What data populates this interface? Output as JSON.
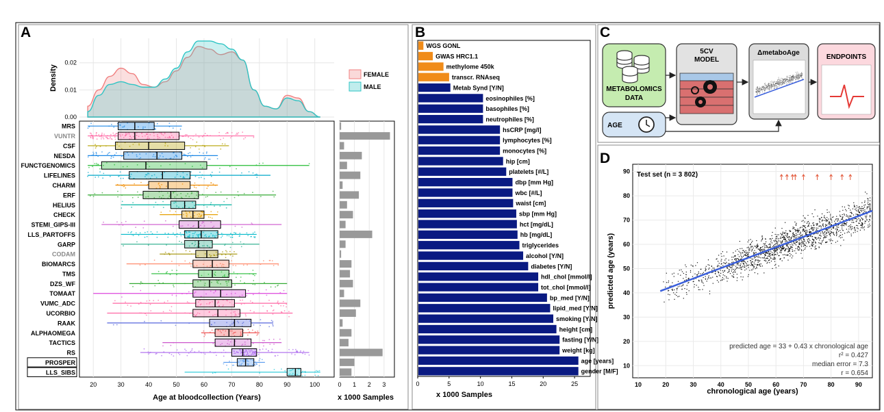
{
  "panel_labels": [
    "A",
    "B",
    "C",
    "D"
  ],
  "chart_data": [
    {
      "id": "density",
      "type": "area",
      "ylabel": "Density",
      "xlim": [
        15,
        107
      ],
      "ylim": [
        0,
        0.029
      ],
      "y_ticks": [
        0.0,
        0.01,
        0.02
      ],
      "y_tick_labels": [
        "0.00",
        "0.01",
        "0.02"
      ],
      "grid": true,
      "legend_position": "right",
      "series": [
        {
          "name": "FEMALE",
          "color": "#f08080",
          "x": [
            18,
            22,
            26,
            30,
            34,
            38,
            42,
            46,
            50,
            54,
            58,
            62,
            66,
            70,
            74,
            78,
            82,
            86,
            90,
            94,
            98,
            102
          ],
          "y": [
            0.004,
            0.01,
            0.015,
            0.018,
            0.016,
            0.012,
            0.011,
            0.013,
            0.017,
            0.022,
            0.026,
            0.025,
            0.023,
            0.024,
            0.021,
            0.01,
            0.004,
            0.003,
            0.008,
            0.007,
            0.002,
            0.0
          ]
        },
        {
          "name": "MALE",
          "color": "#2ec4c4",
          "x": [
            18,
            22,
            26,
            30,
            34,
            38,
            42,
            46,
            50,
            54,
            58,
            62,
            66,
            70,
            74,
            78,
            82,
            86,
            90,
            94,
            98,
            102
          ],
          "y": [
            0.002,
            0.008,
            0.012,
            0.013,
            0.012,
            0.011,
            0.011,
            0.014,
            0.018,
            0.024,
            0.028,
            0.028,
            0.027,
            0.025,
            0.021,
            0.01,
            0.004,
            0.003,
            0.007,
            0.006,
            0.002,
            0.0
          ]
        }
      ]
    },
    {
      "id": "boxplots",
      "type": "box",
      "xlabel": "Age at bloodcollection (Years)",
      "xlim": [
        15,
        107
      ],
      "x_ticks": [
        20,
        30,
        40,
        50,
        60,
        70,
        80,
        90,
        100
      ],
      "grid": true,
      "boxes": [
        {
          "name": "MRS",
          "label_color": "#000000",
          "color": "#1e88e5",
          "whisker_lo": 18,
          "q1": 29,
          "median": 35,
          "q3": 42,
          "whisker_hi": 52
        },
        {
          "name": "VUNTR",
          "label_color": "#888888",
          "color": "#ff66a3",
          "whisker_lo": 18,
          "q1": 29,
          "median": 35,
          "q3": 51,
          "whisker_hi": 78
        },
        {
          "name": "CSF",
          "label_color": "#000000",
          "color": "#b5a000",
          "whisker_lo": 18,
          "q1": 28,
          "median": 40,
          "q3": 53,
          "whisker_hi": 69
        },
        {
          "name": "NESDA",
          "label_color": "#000000",
          "color": "#1e88e5",
          "whisker_lo": 18,
          "q1": 31,
          "median": 43,
          "q3": 52,
          "whisker_hi": 65
        },
        {
          "name": "FUNCTGENOMICS",
          "label_color": "#000000",
          "color": "#22bb33",
          "whisker_lo": 18,
          "q1": 23,
          "median": 39,
          "q3": 61,
          "whisker_hi": 98
        },
        {
          "name": "LIFELINES",
          "label_color": "#000000",
          "color": "#00a8c8",
          "whisker_lo": 18,
          "q1": 33,
          "median": 45,
          "q3": 55,
          "whisker_hi": 84
        },
        {
          "name": "CHARM",
          "label_color": "#000000",
          "color": "#f08c00",
          "whisker_lo": 28,
          "q1": 40,
          "median": 47,
          "q3": 55,
          "whisker_hi": 65
        },
        {
          "name": "ERF",
          "label_color": "#000000",
          "color": "#33aa33",
          "whisker_lo": 18,
          "q1": 38,
          "median": 48,
          "q3": 58,
          "whisker_hi": 86
        },
        {
          "name": "HELIUS",
          "label_color": "#000000",
          "color": "#00b2a0",
          "whisker_lo": 30,
          "q1": 48,
          "median": 53,
          "q3": 57,
          "whisker_hi": 70
        },
        {
          "name": "CHECK",
          "label_color": "#000000",
          "color": "#e6a000",
          "whisker_lo": 44,
          "q1": 52,
          "median": 56,
          "q3": 60,
          "whisker_hi": 65
        },
        {
          "name": "STEMI_GIPS-III",
          "label_color": "#000000",
          "color": "#cc55cc",
          "whisker_lo": 23,
          "q1": 51,
          "median": 58,
          "q3": 66,
          "whisker_hi": 88
        },
        {
          "name": "LLS_PARTOFFS",
          "label_color": "#000000",
          "color": "#00b8c8",
          "whisker_lo": 30,
          "q1": 53,
          "median": 59,
          "q3": 65,
          "whisker_hi": 79
        },
        {
          "name": "GARP",
          "label_color": "#000000",
          "color": "#22aa88",
          "whisker_lo": 30,
          "q1": 53,
          "median": 58,
          "q3": 63,
          "whisker_hi": 80
        },
        {
          "name": "CODAM",
          "label_color": "#888888",
          "color": "#a09000",
          "whisker_lo": 44,
          "q1": 57,
          "median": 61,
          "q3": 65,
          "whisker_hi": 72
        },
        {
          "name": "BIOMARCS",
          "label_color": "#000000",
          "color": "#ff8060",
          "whisker_lo": 32,
          "q1": 56,
          "median": 63,
          "q3": 69,
          "whisker_hi": 87
        },
        {
          "name": "TMS",
          "label_color": "#000000",
          "color": "#22bb33",
          "whisker_lo": 41,
          "q1": 58,
          "median": 63,
          "q3": 69,
          "whisker_hi": 79
        },
        {
          "name": "DZS_WF",
          "label_color": "#000000",
          "color": "#33aa33",
          "whisker_lo": 33,
          "q1": 56,
          "median": 62,
          "q3": 70,
          "whisker_hi": 90
        },
        {
          "name": "TOMAAT",
          "label_color": "#000000",
          "color": "#dd44dd",
          "whisker_lo": 20,
          "q1": 56,
          "median": 66,
          "q3": 75,
          "whisker_hi": 90
        },
        {
          "name": "VUMC_ADC",
          "label_color": "#000000",
          "color": "#ff66a3",
          "whisker_lo": 27,
          "q1": 57,
          "median": 64,
          "q3": 71,
          "whisker_hi": 90
        },
        {
          "name": "UCORBIO",
          "label_color": "#000000",
          "color": "#ff66a3",
          "whisker_lo": 25,
          "q1": 56,
          "median": 65,
          "q3": 73,
          "whisker_hi": 92
        },
        {
          "name": "RAAK",
          "label_color": "#000000",
          "color": "#5566dd",
          "whisker_lo": 25,
          "q1": 62,
          "median": 71,
          "q3": 77,
          "whisker_hi": 85
        },
        {
          "name": "ALPHAOMEGA",
          "label_color": "#000000",
          "color": "#f05050",
          "whisker_lo": 59,
          "q1": 64,
          "median": 69,
          "q3": 74,
          "whisker_hi": 80
        },
        {
          "name": "TACTICS",
          "label_color": "#000000",
          "color": "#cc55cc",
          "whisker_lo": 45,
          "q1": 64,
          "median": 71,
          "q3": 77,
          "whisker_hi": 88
        },
        {
          "name": "RS",
          "label_color": "#000000",
          "color": "#aa66ee",
          "whisker_lo": 37,
          "q1": 70,
          "median": 74,
          "q3": 79,
          "whisker_hi": 98
        },
        {
          "name": "PROSPER",
          "label_color": "#000000",
          "color": "#5599ee",
          "whisker_lo": 67,
          "q1": 72,
          "median": 75,
          "q3": 78,
          "whisker_hi": 82
        },
        {
          "name": "LLS_SIBS",
          "label_color": "#000000",
          "color": "#22c8d8",
          "whisker_lo": 53,
          "q1": 90,
          "median": 93,
          "q3": 95,
          "whisker_hi": 102
        }
      ],
      "boxed_labels": [
        "PROSPER",
        "LLS_SIBS"
      ]
    },
    {
      "id": "samples_per_cohort",
      "type": "bar",
      "orientation": "horizontal",
      "xlabel": "x 1000 Samples",
      "xlim": [
        0,
        3.7
      ],
      "x_ticks": [
        0,
        1,
        2,
        3
      ],
      "color": "#999999",
      "categories": [
        "MRS",
        "VUNTR",
        "CSF",
        "NESDA",
        "FUNCTGENOMICS",
        "LIFELINES",
        "CHARM",
        "ERF",
        "HELIUS",
        "CHECK",
        "STEMI_GIPS-III",
        "LLS_PARTOFFS",
        "GARP",
        "CODAM",
        "BIOMARCS",
        "TMS",
        "DZS_WF",
        "TOMAAT",
        "VUMC_ADC",
        "UCORBIO",
        "RAAK",
        "ALPHAOMEGA",
        "TACTICS",
        "RS",
        "PROSPER",
        "LLS_SIBS"
      ],
      "values": [
        0.1,
        3.4,
        0.3,
        1.5,
        0.5,
        1.4,
        0.2,
        1.3,
        0.5,
        0.9,
        0.4,
        2.2,
        0.4,
        0.1,
        0.8,
        0.7,
        0.9,
        0.3,
        1.4,
        1.1,
        0.2,
        0.8,
        0.6,
        2.9,
        1.0,
        0.8
      ]
    },
    {
      "id": "variables",
      "type": "bar",
      "orientation": "horizontal",
      "xlabel": "x 1000 Samples",
      "xlim": [
        0,
        27.5
      ],
      "x_ticks": [
        0,
        5,
        10,
        15,
        20,
        25
      ],
      "categories": [
        "WGS GONL",
        "GWAS HRC1.1",
        "methylome 450k",
        "transcr. RNAseq",
        "Metab Synd [Y/N]",
        "eosinophiles [%]",
        "basophiles [%]",
        "neutrophiles [%]",
        "hsCRP [mg/l]",
        "lymphocytes [%]",
        "monocytes [%]",
        "hip [cm]",
        "platelets [#/L]",
        "dbp [mm Hg]",
        "wbc [#/L]",
        "waist [cm]",
        "sbp [mm Hg]",
        "hct [mg/dL]",
        "hb [mg/dL]",
        "triglycerides",
        "alcohol [Y/N]",
        "diabetes [Y/N]",
        "hdl_chol [mmol/l]",
        "tot_chol [mmol/l]",
        "bp_med [Y/N]",
        "lipid_med [Y/N]",
        "smoking [Y/N]",
        "height [cm]",
        "fasting [Y/N]",
        "weight [kg]",
        "age [years]",
        "gender [M/F]"
      ],
      "values": [
        0.8,
        2.3,
        4.0,
        4.9,
        5.1,
        10.3,
        10.3,
        10.3,
        13.0,
        13.0,
        13.0,
        13.5,
        14.0,
        15.0,
        15.0,
        15.1,
        15.6,
        15.7,
        15.8,
        16.1,
        16.7,
        17.5,
        19.1,
        19.1,
        20.5,
        21.0,
        21.5,
        22.0,
        22.5,
        22.5,
        25.5,
        25.5
      ],
      "colors": [
        "#f08c1a",
        "#f08c1a",
        "#f08c1a",
        "#f08c1a",
        "#0a1a82",
        "#0a1a82",
        "#0a1a82",
        "#0a1a82",
        "#0a1a82",
        "#0a1a82",
        "#0a1a82",
        "#0a1a82",
        "#0a1a82",
        "#0a1a82",
        "#0a1a82",
        "#0a1a82",
        "#0a1a82",
        "#0a1a82",
        "#0a1a82",
        "#0a1a82",
        "#0a1a82",
        "#0a1a82",
        "#0a1a82",
        "#0a1a82",
        "#0a1a82",
        "#0a1a82",
        "#0a1a82",
        "#0a1a82",
        "#0a1a82",
        "#0a1a82",
        "#0a1a82",
        "#0a1a82"
      ]
    },
    {
      "id": "prediction_scatter",
      "type": "scatter",
      "title": "Test set (n = 3 802)",
      "xlabel": "chronological age (years)",
      "ylabel": "predicted age (years)",
      "xlim": [
        8,
        95
      ],
      "ylim": [
        5,
        93
      ],
      "x_ticks": [
        10,
        20,
        30,
        40,
        50,
        60,
        70,
        80,
        90
      ],
      "y_ticks": [
        10,
        20,
        30,
        40,
        50,
        60,
        70,
        80,
        90
      ],
      "grid": true,
      "n_points": 3802,
      "fit_line": {
        "intercept": 33,
        "slope": 0.43,
        "x_range": [
          18,
          95
        ],
        "color": "#3a5fdc"
      },
      "arrow_x": [
        62,
        64,
        66,
        67,
        70,
        75,
        80,
        84,
        87
      ],
      "annotations": [
        "predicted age = 33 + 0.43 x chronological age",
        "r² = 0.427",
        "median error = 7.3",
        "r = 0.654"
      ]
    }
  ],
  "diagram": {
    "nodes": {
      "metabolomics": "METABOLOMICS DATA",
      "age": "AGE",
      "model": "5CV MODEL",
      "delta": "ΔmetaboAge",
      "endpoints": "ENDPOINTS"
    },
    "colors": {
      "metabolomics": "#c5ecb0",
      "age": "#d5e5f5",
      "model": "#e2e2e2",
      "delta": "#dcdcdc",
      "endpoints": "#fcd8de"
    }
  }
}
